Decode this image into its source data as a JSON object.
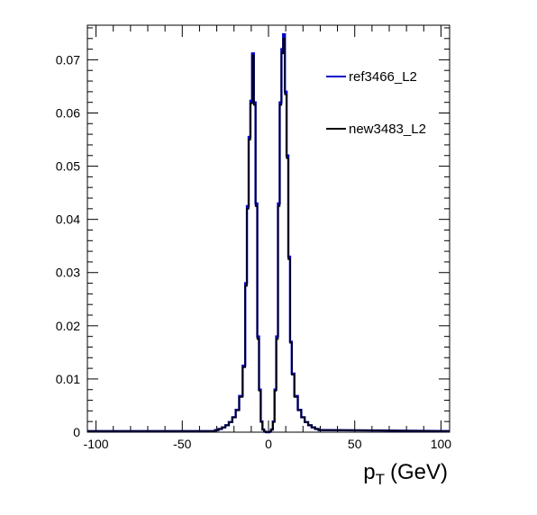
{
  "chart_data": {
    "type": "histogram-step",
    "xlabel_main": "p",
    "xlabel_sub": "T",
    "xlabel_unit": "(GeV)",
    "xlim": [
      -105,
      105
    ],
    "ylim": [
      0,
      0.0765
    ],
    "x_ticks": [
      -100,
      -50,
      0,
      50,
      100
    ],
    "x_tick_labels": [
      "-100",
      "-50",
      "0",
      "50",
      "100"
    ],
    "y_ticks": [
      0,
      0.01,
      0.02,
      0.03,
      0.04,
      0.05,
      0.06,
      0.07
    ],
    "y_tick_labels": [
      "0",
      "0.01",
      "0.02",
      "0.03",
      "0.04",
      "0.05",
      "0.06",
      "0.07"
    ],
    "grid": false,
    "legend_position": "top-right",
    "series": [
      {
        "name": "ref3466_L2",
        "color": "#0000cc",
        "x": [
          -30,
          -28,
          -26,
          -24,
          -22,
          -20,
          -18,
          -16,
          -14,
          -13,
          -12,
          -11,
          -10,
          -9,
          -8,
          -7,
          -6,
          -5,
          -4,
          -3,
          -2,
          -1,
          0,
          1,
          2,
          3,
          4,
          5,
          6,
          7,
          8,
          9,
          10,
          11,
          12,
          13,
          14,
          16,
          18,
          20,
          22,
          24,
          26,
          28,
          30
        ],
        "y": [
          0.0004,
          0.0006,
          0.0009,
          0.0013,
          0.0019,
          0.0028,
          0.0042,
          0.0068,
          0.0125,
          0.028,
          0.0425,
          0.0555,
          0.0623,
          0.0712,
          0.062,
          0.043,
          0.018,
          0.008,
          0.002,
          0.0005,
          0.0001,
          0.0,
          0.0,
          0.0001,
          0.0005,
          0.002,
          0.008,
          0.018,
          0.043,
          0.062,
          0.072,
          0.0748,
          0.064,
          0.052,
          0.033,
          0.017,
          0.011,
          0.0068,
          0.0042,
          0.0028,
          0.0019,
          0.0013,
          0.0009,
          0.0006,
          0.0004
        ]
      },
      {
        "name": "new3483_L2",
        "color": "#000000",
        "x": [
          -30,
          -28,
          -26,
          -24,
          -22,
          -20,
          -18,
          -16,
          -14,
          -13,
          -12,
          -11,
          -10,
          -9,
          -8,
          -7,
          -6,
          -5,
          -4,
          -3,
          -2,
          -1,
          0,
          1,
          2,
          3,
          4,
          5,
          6,
          7,
          8,
          9,
          10,
          11,
          12,
          13,
          14,
          16,
          18,
          20,
          22,
          24,
          26,
          28,
          30
        ],
        "y": [
          0.0004,
          0.0006,
          0.0009,
          0.0013,
          0.0019,
          0.0028,
          0.0041,
          0.0066,
          0.0122,
          0.0275,
          0.042,
          0.055,
          0.0618,
          0.0708,
          0.0615,
          0.0425,
          0.0175,
          0.0078,
          0.0019,
          0.0005,
          0.0001,
          0.0,
          0.0,
          0.0001,
          0.0005,
          0.0019,
          0.0078,
          0.0175,
          0.0425,
          0.0615,
          0.0712,
          0.074,
          0.0635,
          0.0515,
          0.0325,
          0.0168,
          0.0108,
          0.0066,
          0.0041,
          0.0028,
          0.0019,
          0.0013,
          0.0009,
          0.0006,
          0.0004
        ]
      }
    ]
  }
}
